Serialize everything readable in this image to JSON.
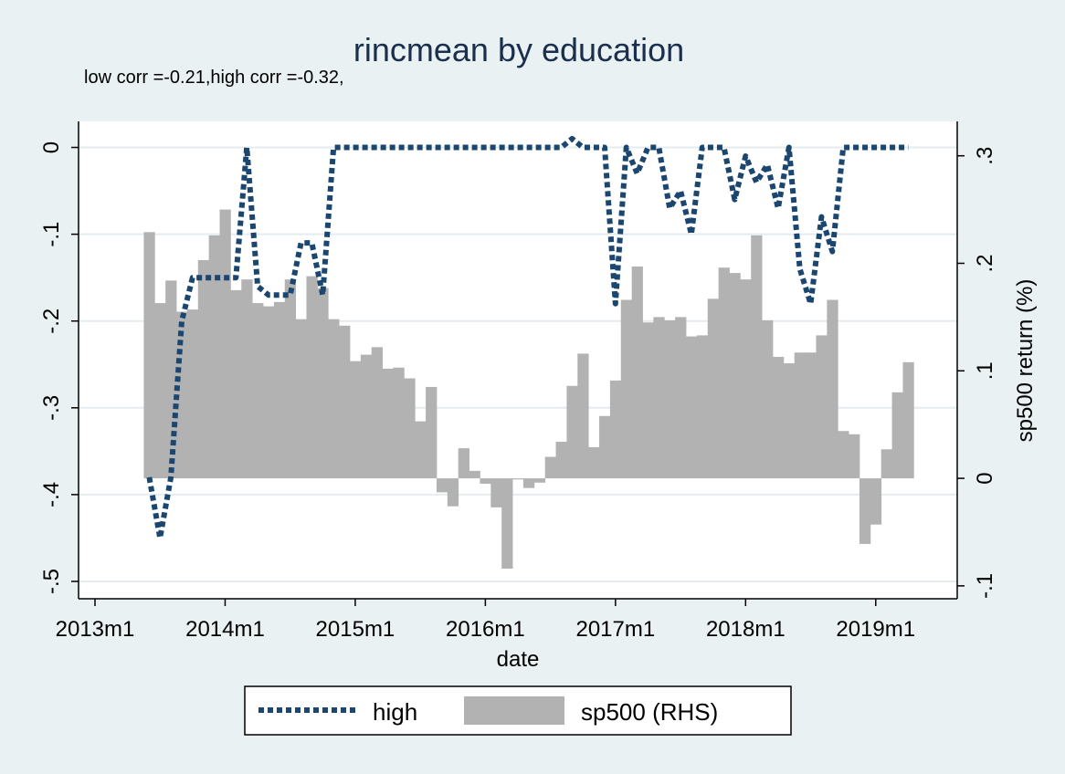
{
  "chart_data": {
    "type": "line",
    "title": "rincmean by education",
    "subtitle": "low corr =-0.21,high corr =-0.32,",
    "xlabel": "date",
    "ylabel_left": "",
    "ylabel_right": "sp500 return (%)",
    "grid": true,
    "legend_position": "bottom",
    "x_ticks": [
      "2013m1",
      "2014m1",
      "2015m1",
      "2016m1",
      "2017m1",
      "2018m1",
      "2019m1"
    ],
    "y_left_ticks": [
      "0",
      "-.1",
      "-.2",
      "-.3",
      "-.4",
      "-.5"
    ],
    "y_left_tick_values": [
      0,
      -0.1,
      -0.2,
      -0.3,
      -0.4,
      -0.5
    ],
    "y_right_ticks": [
      ".3",
      ".2",
      ".1",
      "0",
      "-.1"
    ],
    "y_right_tick_values": [
      0.3,
      0.2,
      0.1,
      0,
      -0.1
    ],
    "ylim_left": [
      -0.52,
      0.03
    ],
    "ylim_right": [
      -0.112,
      0.332
    ],
    "xlim": [
      "2013m1",
      "2019m7"
    ],
    "series": [
      {
        "name": "high",
        "axis": "left",
        "style": "dotted-line",
        "color": "#1a4670",
        "x": [
          "2013m6",
          "2013m7",
          "2013m8",
          "2013m9",
          "2013m10",
          "2013m11",
          "2013m12",
          "2014m1",
          "2014m2",
          "2014m3",
          "2014m4",
          "2014m5",
          "2014m6",
          "2014m7",
          "2014m8",
          "2014m9",
          "2014m10",
          "2014m11",
          "2014m12",
          "2015m1",
          "2015m2",
          "2015m3",
          "2015m4",
          "2015m5",
          "2015m6",
          "2015m7",
          "2015m8",
          "2015m9",
          "2015m10",
          "2015m11",
          "2015m12",
          "2016m1",
          "2016m2",
          "2016m3",
          "2016m4",
          "2016m5",
          "2016m6",
          "2016m7",
          "2016m8",
          "2016m9",
          "2016m10",
          "2016m11",
          "2016m12",
          "2017m1",
          "2017m2",
          "2017m3",
          "2017m4",
          "2017m5",
          "2017m6",
          "2017m7",
          "2017m8",
          "2017m9",
          "2017m10",
          "2017m11",
          "2017m12",
          "2018m1",
          "2018m2",
          "2018m3",
          "2018m4",
          "2018m5",
          "2018m6",
          "2018m7",
          "2018m8",
          "2018m9",
          "2018m10",
          "2018m11",
          "2018m12",
          "2019m1",
          "2019m2",
          "2019m3",
          "2019m4"
        ],
        "values": [
          -0.38,
          -0.45,
          -0.38,
          -0.2,
          -0.15,
          -0.15,
          -0.15,
          -0.15,
          -0.15,
          0,
          -0.16,
          -0.17,
          -0.17,
          -0.17,
          -0.11,
          -0.11,
          -0.17,
          0,
          0,
          0,
          0,
          0,
          0,
          0,
          0,
          0,
          0,
          0,
          0,
          0,
          0,
          0,
          0,
          0,
          0,
          0,
          0,
          0,
          0,
          0.01,
          0,
          0,
          0,
          -0.18,
          0,
          -0.03,
          0,
          0,
          -0.07,
          -0.05,
          -0.1,
          0,
          0,
          0,
          -0.06,
          -0.01,
          -0.04,
          -0.02,
          -0.07,
          0,
          -0.14,
          -0.18,
          -0.08,
          -0.12,
          0,
          0,
          0,
          0,
          0,
          0,
          0
        ]
      },
      {
        "name": "sp500 (RHS)",
        "axis": "right",
        "style": "bar",
        "color": "#b2b2b2",
        "x": [
          "2013m6",
          "2013m7",
          "2013m8",
          "2013m9",
          "2013m10",
          "2013m11",
          "2013m12",
          "2014m1",
          "2014m2",
          "2014m3",
          "2014m4",
          "2014m5",
          "2014m6",
          "2014m7",
          "2014m8",
          "2014m9",
          "2014m10",
          "2014m11",
          "2014m12",
          "2015m1",
          "2015m2",
          "2015m3",
          "2015m4",
          "2015m5",
          "2015m6",
          "2015m7",
          "2015m8",
          "2015m9",
          "2015m10",
          "2015m11",
          "2015m12",
          "2016m1",
          "2016m2",
          "2016m3",
          "2016m4",
          "2016m5",
          "2016m6",
          "2016m7",
          "2016m8",
          "2016m9",
          "2016m10",
          "2016m11",
          "2016m12",
          "2017m1",
          "2017m2",
          "2017m3",
          "2017m4",
          "2017m5",
          "2017m6",
          "2017m7",
          "2017m8",
          "2017m9",
          "2017m10",
          "2017m11",
          "2017m12",
          "2018m1",
          "2018m2",
          "2018m3",
          "2018m4",
          "2018m5",
          "2018m6",
          "2018m7",
          "2018m8",
          "2018m9",
          "2018m10",
          "2018m11",
          "2018m12",
          "2019m1",
          "2019m2",
          "2019m3",
          "2019m4"
        ],
        "values": [
          0.229,
          0.163,
          0.184,
          0.155,
          0.157,
          0.203,
          0.226,
          0.25,
          0.175,
          0.185,
          0.163,
          0.16,
          0.164,
          0.185,
          0.148,
          0.188,
          0.177,
          0.148,
          0.142,
          0.109,
          0.115,
          0.122,
          0.102,
          0.103,
          0.093,
          0.053,
          0.085,
          -0.013,
          -0.026,
          0.028,
          0.007,
          -0.005,
          -0.027,
          -0.084,
          -0.001,
          -0.009,
          -0.004,
          0.02,
          0.034,
          0.086,
          0.116,
          0.029,
          0.058,
          0.091,
          0.166,
          0.197,
          0.145,
          0.15,
          0.147,
          0.15,
          0.132,
          0.133,
          0.167,
          0.196,
          0.191,
          0.185,
          0.226,
          0.147,
          0.113,
          0.107,
          0.117,
          0.117,
          0.133,
          0.166,
          0.044,
          0.041,
          -0.061,
          -0.043,
          0.027,
          0.08,
          0.108
        ]
      }
    ]
  },
  "legend": {
    "items": [
      {
        "label": "high"
      },
      {
        "label": "sp500 (RHS)"
      }
    ]
  }
}
